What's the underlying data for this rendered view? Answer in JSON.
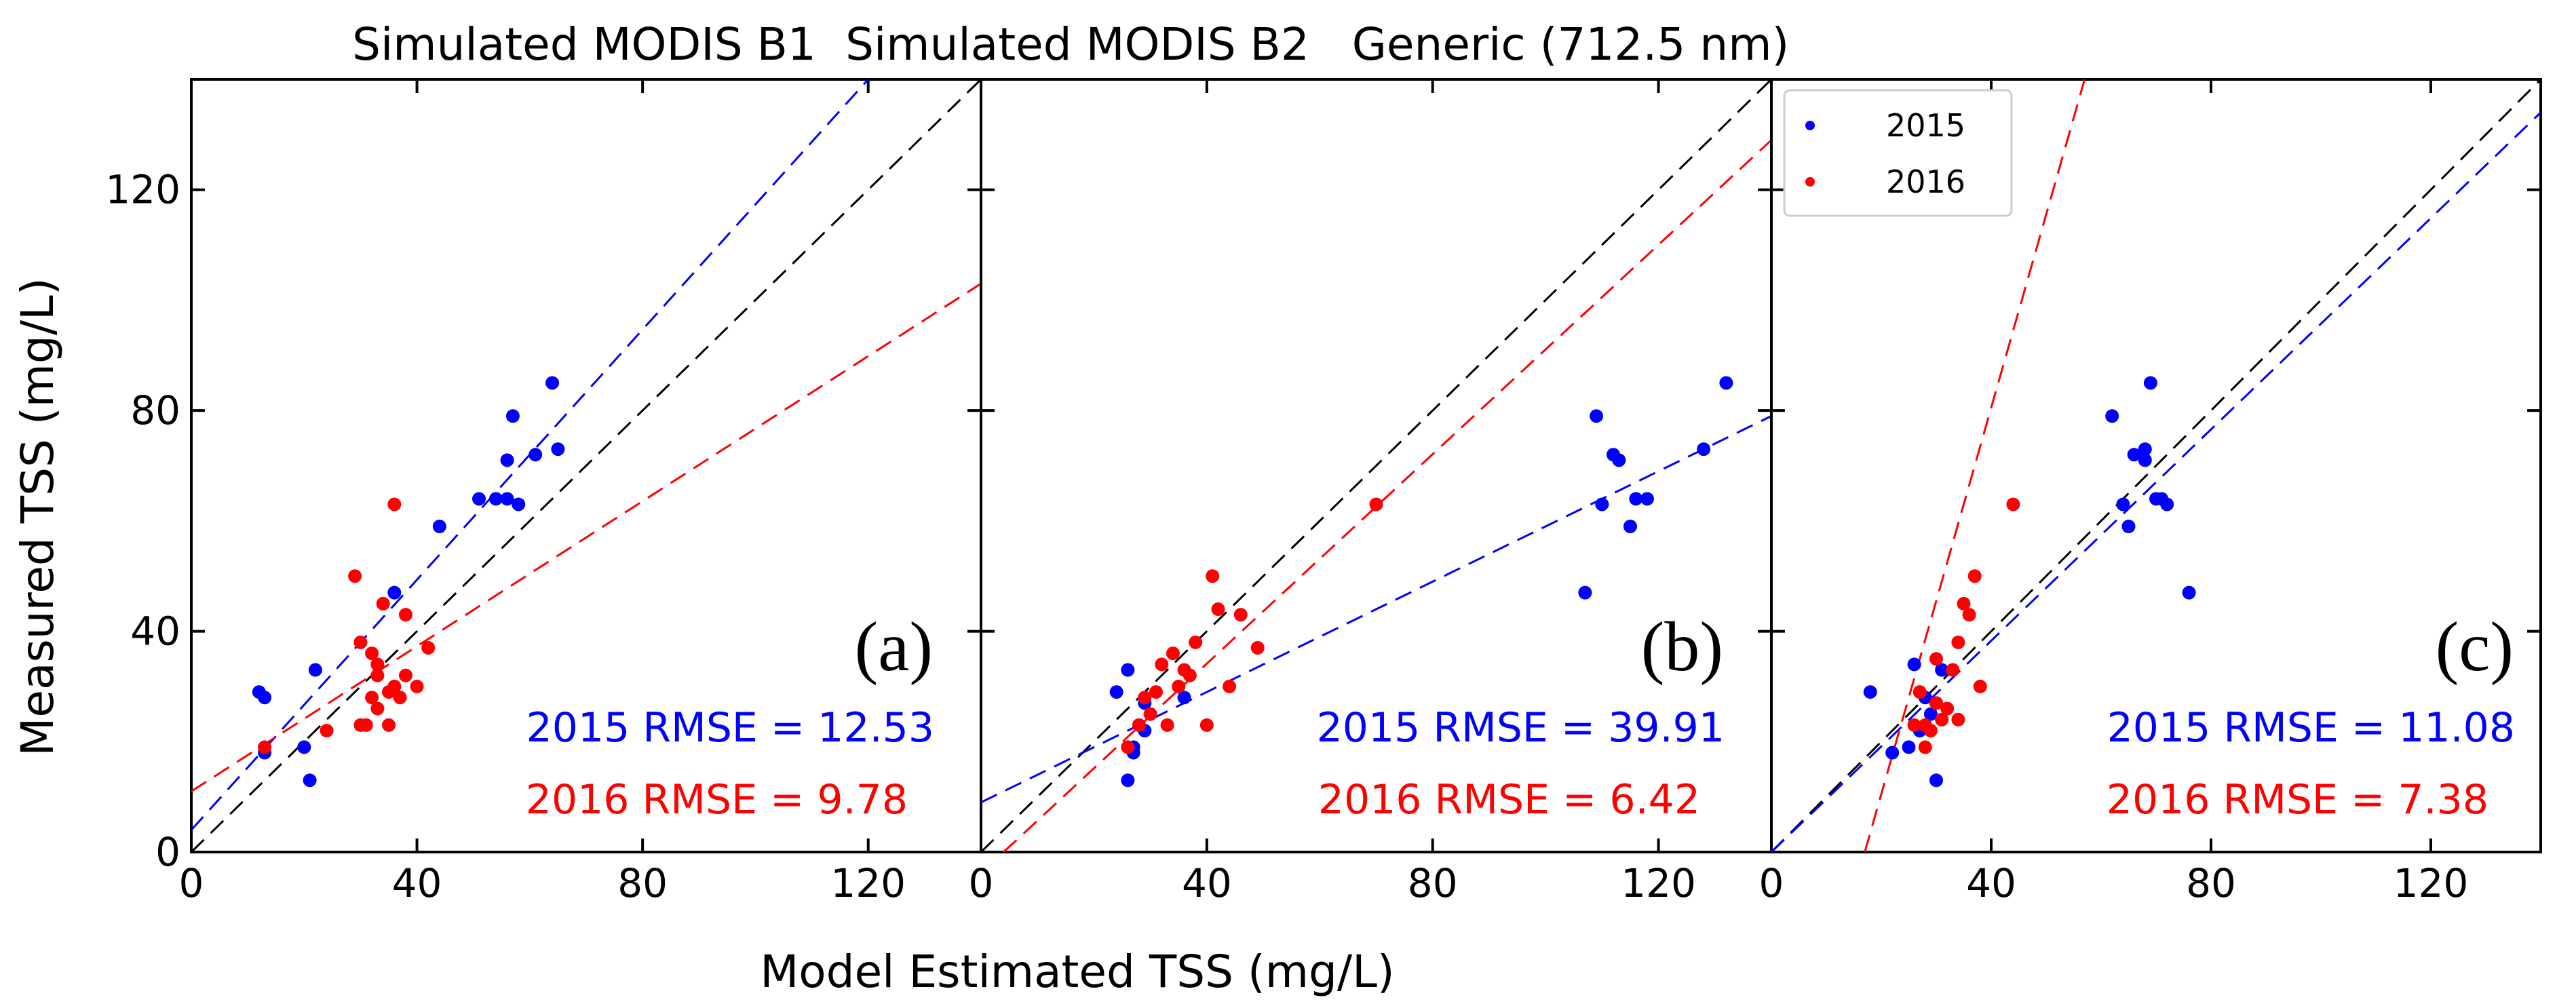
{
  "chart_data": [
    {
      "type": "scatter",
      "title": "Simulated MODIS B1",
      "panel_label": "(a)",
      "xlabel": "Model Estimated TSS (mg/L)",
      "ylabel": "Measured TSS (mg/L)",
      "xlim": [
        0,
        140
      ],
      "ylim": [
        0,
        140
      ],
      "xticks": [
        "0",
        "40",
        "80",
        "120"
      ],
      "yticks": [
        "0",
        "40",
        "80",
        "120"
      ],
      "series": [
        {
          "name": "2015",
          "color": "#0000ff",
          "x": [
            12,
            13,
            13,
            20,
            21,
            22,
            36,
            44,
            51,
            54,
            56,
            56,
            57,
            58,
            61,
            64,
            65
          ],
          "y": [
            29,
            28,
            18,
            19,
            13,
            33,
            47,
            59,
            64,
            64,
            71,
            64,
            79,
            63,
            72,
            85,
            73
          ],
          "fit": [
            [
              0,
              4
            ],
            [
              120,
              140
            ]
          ]
        },
        {
          "name": "2016",
          "color": "#ff0000",
          "x": [
            13,
            24,
            29,
            30,
            30,
            31,
            32,
            32,
            33,
            33,
            33,
            34,
            35,
            35,
            36,
            36,
            37,
            38,
            38,
            40,
            42
          ],
          "y": [
            19,
            22,
            50,
            38,
            23,
            23,
            28,
            36,
            26,
            32,
            34,
            45,
            29,
            23,
            30,
            63,
            28,
            32,
            43,
            30,
            37
          ],
          "fit": [
            [
              0,
              11
            ],
            [
              140,
              103
            ]
          ]
        }
      ],
      "reference_line": [
        [
          0,
          0
        ],
        [
          140,
          140
        ]
      ],
      "annotations": [
        {
          "text": "2015 RMSE = 12.53",
          "color": "#0000ff"
        },
        {
          "text": "2016 RMSE = 9.78",
          "color": "#ff0000"
        }
      ]
    },
    {
      "type": "scatter",
      "title": "Simulated MODIS B2",
      "panel_label": "(b)",
      "xlim": [
        0,
        140
      ],
      "ylim": [
        0,
        140
      ],
      "xticks": [
        "0",
        "40",
        "80",
        "120"
      ],
      "series": [
        {
          "name": "2015",
          "color": "#0000ff",
          "x": [
            24,
            26,
            26,
            27,
            27,
            28,
            29,
            29,
            36,
            107,
            109,
            110,
            112,
            113,
            115,
            116,
            118,
            128,
            132
          ],
          "y": [
            29,
            33,
            13,
            18,
            19,
            23,
            27,
            22,
            28,
            47,
            79,
            63,
            72,
            71,
            59,
            64,
            64,
            73,
            85
          ],
          "fit": [
            [
              0,
              9
            ],
            [
              140,
              79
            ]
          ]
        },
        {
          "name": "2016",
          "color": "#ff0000",
          "x": [
            26,
            28,
            29,
            30,
            31,
            32,
            33,
            34,
            35,
            36,
            37,
            38,
            40,
            41,
            42,
            44,
            46,
            49,
            70
          ],
          "y": [
            19,
            23,
            28,
            25,
            29,
            34,
            23,
            36,
            30,
            33,
            32,
            38,
            23,
            50,
            44,
            30,
            43,
            37,
            63
          ],
          "fit": [
            [
              4,
              0
            ],
            [
              140,
              129
            ]
          ]
        }
      ],
      "reference_line": [
        [
          0,
          0
        ],
        [
          140,
          140
        ]
      ],
      "annotations": [
        {
          "text": "2015 RMSE = 39.91",
          "color": "#0000ff"
        },
        {
          "text": "2016 RMSE = 6.42",
          "color": "#ff0000"
        }
      ]
    },
    {
      "type": "scatter",
      "title": "Generic (712.5 nm)",
      "panel_label": "(c)",
      "xlim": [
        0,
        140
      ],
      "ylim": [
        0,
        140
      ],
      "xticks": [
        "0",
        "40",
        "80",
        "120"
      ],
      "legend": {
        "placement": "top-left",
        "entries": [
          "2015",
          "2016"
        ]
      },
      "series": [
        {
          "name": "2015",
          "color": "#0000ff",
          "x": [
            18,
            22,
            25,
            26,
            27,
            28,
            29,
            30,
            30,
            31,
            62,
            64,
            65,
            66,
            68,
            68,
            69,
            70,
            71,
            72,
            76
          ],
          "y": [
            29,
            18,
            19,
            34,
            22,
            28,
            25,
            13,
            27,
            33,
            79,
            63,
            59,
            72,
            71,
            73,
            85,
            64,
            64,
            63,
            47
          ],
          "fit": [
            [
              0,
              0
            ],
            [
              140,
              134
            ]
          ]
        },
        {
          "name": "2016",
          "color": "#ff0000",
          "x": [
            26,
            27,
            28,
            28,
            29,
            30,
            30,
            31,
            32,
            33,
            34,
            34,
            35,
            36,
            37,
            38,
            44
          ],
          "y": [
            23,
            29,
            19,
            23,
            22,
            27,
            35,
            24,
            26,
            33,
            38,
            24,
            45,
            43,
            50,
            30,
            63
          ],
          "fit": [
            [
              17,
              0
            ],
            [
              57,
              140
            ]
          ]
        }
      ],
      "reference_line": [
        [
          0,
          0
        ],
        [
          140,
          140
        ]
      ],
      "annotations": [
        {
          "text": "2015 RMSE = 11.08",
          "color": "#0000ff"
        },
        {
          "text": "2016 RMSE = 7.38",
          "color": "#ff0000"
        }
      ]
    }
  ]
}
